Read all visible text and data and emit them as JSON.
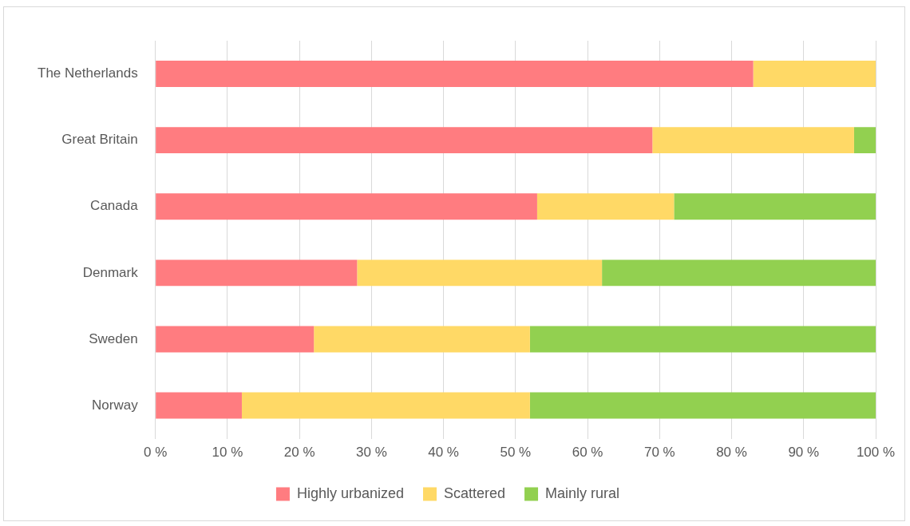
{
  "chart_data": {
    "type": "bar",
    "orientation": "horizontal",
    "stacked": true,
    "categories": [
      "The Netherlands",
      "Great Britain",
      "Canada",
      "Denmark",
      "Sweden",
      "Norway"
    ],
    "series": [
      {
        "name": "Highly urbanized",
        "color": "#ff7c80",
        "values": [
          83,
          69,
          53,
          28,
          22,
          12
        ]
      },
      {
        "name": "Scattered",
        "color": "#ffd966",
        "values": [
          17,
          28,
          19,
          34,
          30,
          40
        ]
      },
      {
        "name": "Mainly rural",
        "color": "#92d050",
        "values": [
          0,
          3,
          28,
          38,
          48,
          48
        ]
      }
    ],
    "xlim": [
      0,
      100
    ],
    "xticks": [
      {
        "value": 0,
        "label": "0 %"
      },
      {
        "value": 10,
        "label": "10 %"
      },
      {
        "value": 20,
        "label": "20 %"
      },
      {
        "value": 30,
        "label": "30 %"
      },
      {
        "value": 40,
        "label": "40 %"
      },
      {
        "value": 50,
        "label": "50 %"
      },
      {
        "value": 60,
        "label": "60 %"
      },
      {
        "value": 70,
        "label": "70 %"
      },
      {
        "value": 80,
        "label": "80 %"
      },
      {
        "value": 90,
        "label": "90 %"
      },
      {
        "value": 100,
        "label": "100 %"
      }
    ],
    "grid": "x",
    "legend": "bottom"
  }
}
